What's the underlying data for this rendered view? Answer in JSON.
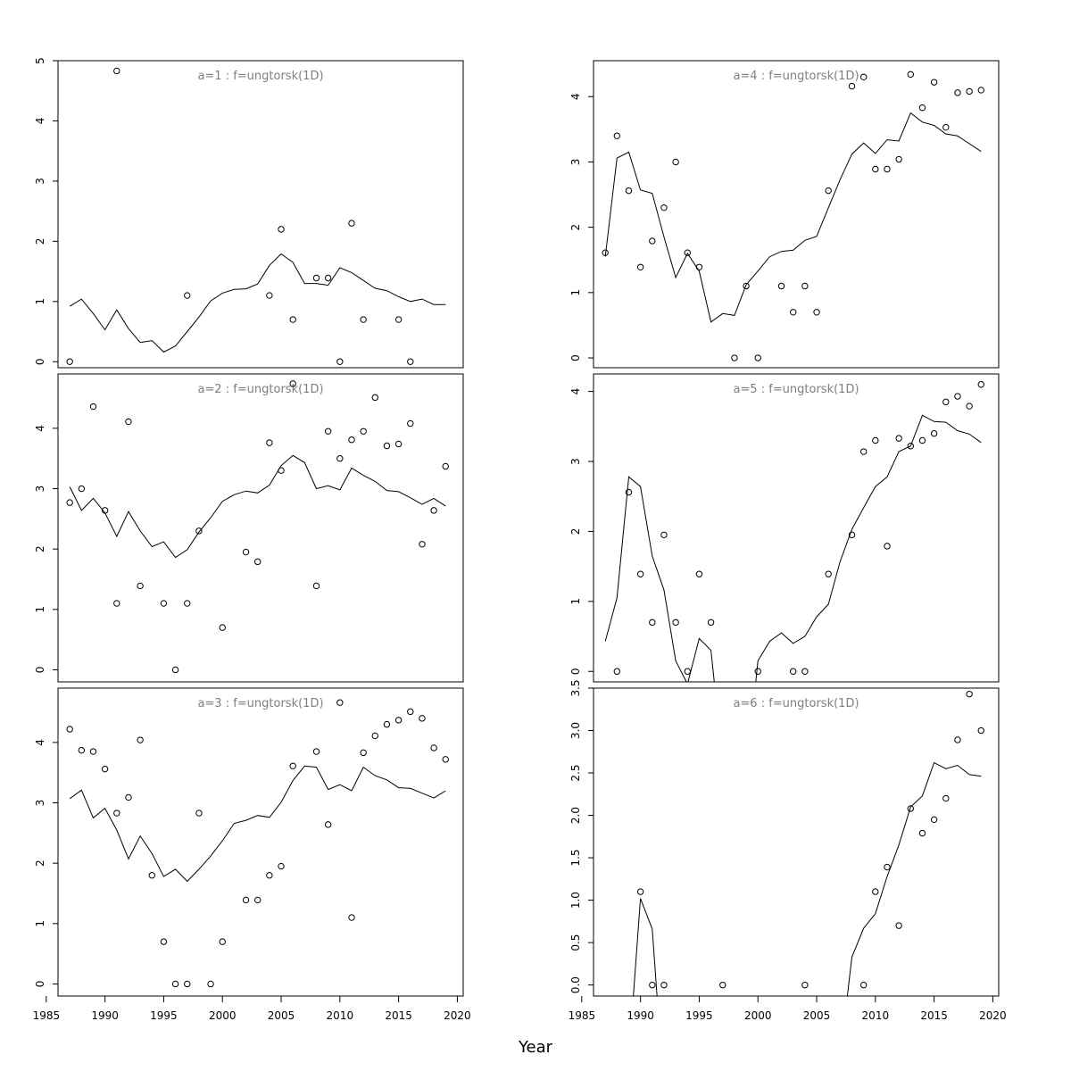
{
  "xlabel": "Year",
  "chart_data": [
    {
      "type": "scatter",
      "title": "a=1 : f=ungtorsk(1D)",
      "xlim": [
        1986,
        2020.5
      ],
      "ylim": [
        -0.1,
        5
      ],
      "yticks": [
        0,
        1,
        2,
        3,
        4,
        5
      ],
      "observed": [
        [
          1987,
          0
        ],
        [
          1991,
          4.83
        ],
        [
          1997,
          1.1
        ],
        [
          2004,
          1.1
        ],
        [
          2005,
          2.2
        ],
        [
          2006,
          0.7
        ],
        [
          2008,
          1.39
        ],
        [
          2009,
          1.39
        ],
        [
          2010,
          0
        ],
        [
          2011,
          2.3
        ],
        [
          2012,
          0.7
        ],
        [
          2015,
          0.7
        ],
        [
          2016,
          0
        ]
      ],
      "fitted": [
        [
          1987,
          0.92
        ],
        [
          1988,
          1.04
        ],
        [
          1989,
          0.8
        ],
        [
          1990,
          0.53
        ],
        [
          1991,
          0.86
        ],
        [
          1992,
          0.55
        ],
        [
          1993,
          0.32
        ],
        [
          1994,
          0.35
        ],
        [
          1995,
          0.16
        ],
        [
          1996,
          0.26
        ],
        [
          1997,
          0.5
        ],
        [
          1998,
          0.74
        ],
        [
          1999,
          1.01
        ],
        [
          2000,
          1.14
        ],
        [
          2001,
          1.2
        ],
        [
          2002,
          1.21
        ],
        [
          2003,
          1.29
        ],
        [
          2004,
          1.6
        ],
        [
          2005,
          1.79
        ],
        [
          2006,
          1.65
        ],
        [
          2007,
          1.3
        ],
        [
          2008,
          1.3
        ],
        [
          2009,
          1.27
        ],
        [
          2010,
          1.56
        ],
        [
          2011,
          1.48
        ],
        [
          2012,
          1.35
        ],
        [
          2013,
          1.22
        ],
        [
          2014,
          1.18
        ],
        [
          2015,
          1.08
        ],
        [
          2016,
          1.0
        ],
        [
          2017,
          1.04
        ],
        [
          2018,
          0.95
        ],
        [
          2019,
          0.95
        ]
      ]
    },
    {
      "type": "scatter",
      "title": "a=4 : f=ungtorsk(1D)",
      "xlim": [
        1986,
        2020.5
      ],
      "ylim": [
        -0.15,
        4.55
      ],
      "yticks": [
        0,
        1,
        2,
        3,
        4
      ],
      "observed": [
        [
          1987,
          1.61
        ],
        [
          1988,
          3.4
        ],
        [
          1989,
          2.56
        ],
        [
          1990,
          1.39
        ],
        [
          1991,
          1.79
        ],
        [
          1992,
          2.3
        ],
        [
          1993,
          3.0
        ],
        [
          1994,
          1.61
        ],
        [
          1995,
          1.39
        ],
        [
          1998,
          0
        ],
        [
          1999,
          1.1
        ],
        [
          2000,
          0
        ],
        [
          2002,
          1.1
        ],
        [
          2003,
          0.7
        ],
        [
          2004,
          1.1
        ],
        [
          2005,
          0.7
        ],
        [
          2006,
          2.56
        ],
        [
          2008,
          4.16
        ],
        [
          2009,
          4.3
        ],
        [
          2010,
          2.89
        ],
        [
          2011,
          2.89
        ],
        [
          2012,
          3.04
        ],
        [
          2013,
          4.34
        ],
        [
          2014,
          3.83
        ],
        [
          2015,
          4.22
        ],
        [
          2016,
          3.53
        ],
        [
          2017,
          4.06
        ],
        [
          2018,
          4.08
        ],
        [
          2019,
          4.1
        ]
      ],
      "fitted": [
        [
          1987,
          1.55
        ],
        [
          1988,
          3.06
        ],
        [
          1989,
          3.15
        ],
        [
          1990,
          2.57
        ],
        [
          1991,
          2.52
        ],
        [
          1992,
          1.85
        ],
        [
          1993,
          1.23
        ],
        [
          1994,
          1.6
        ],
        [
          1995,
          1.33
        ],
        [
          1996,
          0.55
        ],
        [
          1997,
          0.68
        ],
        [
          1998,
          0.65
        ],
        [
          1999,
          1.12
        ],
        [
          2000,
          1.33
        ],
        [
          2001,
          1.55
        ],
        [
          2002,
          1.63
        ],
        [
          2003,
          1.65
        ],
        [
          2004,
          1.8
        ],
        [
          2005,
          1.86
        ],
        [
          2006,
          2.3
        ],
        [
          2007,
          2.73
        ],
        [
          2008,
          3.12
        ],
        [
          2009,
          3.29
        ],
        [
          2010,
          3.13
        ],
        [
          2011,
          3.34
        ],
        [
          2012,
          3.32
        ],
        [
          2013,
          3.75
        ],
        [
          2014,
          3.61
        ],
        [
          2015,
          3.56
        ],
        [
          2016,
          3.43
        ],
        [
          2017,
          3.4
        ],
        [
          2018,
          3.28
        ],
        [
          2019,
          3.16
        ]
      ]
    },
    {
      "type": "scatter",
      "title": "a=2 : f=ungtorsk(1D)",
      "xlim": [
        1986,
        2020.5
      ],
      "ylim": [
        -0.2,
        4.9
      ],
      "yticks": [
        0,
        1,
        2,
        3,
        4
      ],
      "observed": [
        [
          1987,
          2.77
        ],
        [
          1988,
          3.0
        ],
        [
          1989,
          4.36
        ],
        [
          1990,
          2.64
        ],
        [
          1991,
          1.1
        ],
        [
          1992,
          4.11
        ],
        [
          1993,
          1.39
        ],
        [
          1995,
          1.1
        ],
        [
          1996,
          0
        ],
        [
          1997,
          1.1
        ],
        [
          1998,
          2.3
        ],
        [
          2000,
          0.7
        ],
        [
          2002,
          1.95
        ],
        [
          2003,
          1.79
        ],
        [
          2004,
          3.76
        ],
        [
          2005,
          3.3
        ],
        [
          2006,
          4.74
        ],
        [
          2008,
          1.39
        ],
        [
          2009,
          3.95
        ],
        [
          2010,
          3.5
        ],
        [
          2011,
          3.81
        ],
        [
          2012,
          3.95
        ],
        [
          2013,
          4.51
        ],
        [
          2014,
          3.71
        ],
        [
          2015,
          3.74
        ],
        [
          2016,
          4.08
        ],
        [
          2017,
          2.08
        ],
        [
          2018,
          2.64
        ],
        [
          2019,
          3.37
        ]
      ],
      "fitted": [
        [
          1987,
          3.03
        ],
        [
          1988,
          2.64
        ],
        [
          1989,
          2.84
        ],
        [
          1990,
          2.6
        ],
        [
          1991,
          2.21
        ],
        [
          1992,
          2.62
        ],
        [
          1993,
          2.3
        ],
        [
          1994,
          2.04
        ],
        [
          1995,
          2.12
        ],
        [
          1996,
          1.86
        ],
        [
          1997,
          1.99
        ],
        [
          1998,
          2.28
        ],
        [
          1999,
          2.52
        ],
        [
          2000,
          2.79
        ],
        [
          2001,
          2.9
        ],
        [
          2002,
          2.96
        ],
        [
          2003,
          2.93
        ],
        [
          2004,
          3.06
        ],
        [
          2005,
          3.38
        ],
        [
          2006,
          3.55
        ],
        [
          2007,
          3.43
        ],
        [
          2008,
          3.0
        ],
        [
          2009,
          3.05
        ],
        [
          2010,
          2.98
        ],
        [
          2011,
          3.34
        ],
        [
          2012,
          3.22
        ],
        [
          2013,
          3.12
        ],
        [
          2014,
          2.97
        ],
        [
          2015,
          2.95
        ],
        [
          2016,
          2.85
        ],
        [
          2017,
          2.74
        ],
        [
          2018,
          2.84
        ],
        [
          2019,
          2.71
        ]
      ]
    },
    {
      "type": "scatter",
      "title": "a=5 : f=ungtorsk(1D)",
      "xlim": [
        1986,
        2020.5
      ],
      "ylim": [
        -0.15,
        4.25
      ],
      "yticks": [
        0,
        1,
        2,
        3,
        4
      ],
      "observed": [
        [
          1988,
          0
        ],
        [
          1989,
          2.56
        ],
        [
          1990,
          1.39
        ],
        [
          1991,
          0.7
        ],
        [
          1992,
          1.95
        ],
        [
          1993,
          0.7
        ],
        [
          1994,
          0
        ],
        [
          1995,
          1.39
        ],
        [
          1996,
          0.7
        ],
        [
          2000,
          0
        ],
        [
          2003,
          0
        ],
        [
          2004,
          0
        ],
        [
          2006,
          1.39
        ],
        [
          2008,
          1.95
        ],
        [
          2009,
          3.14
        ],
        [
          2010,
          3.3
        ],
        [
          2011,
          1.79
        ],
        [
          2012,
          3.33
        ],
        [
          2013,
          3.22
        ],
        [
          2014,
          3.3
        ],
        [
          2015,
          3.4
        ],
        [
          2016,
          3.85
        ],
        [
          2017,
          3.93
        ],
        [
          2018,
          3.79
        ],
        [
          2019,
          4.1
        ]
      ],
      "fitted": [
        [
          1987,
          0.43
        ],
        [
          1988,
          1.05
        ],
        [
          1989,
          2.78
        ],
        [
          1990,
          2.64
        ],
        [
          1991,
          1.65
        ],
        [
          1992,
          1.16
        ],
        [
          1993,
          0.15
        ],
        [
          1994,
          -0.18
        ],
        [
          1995,
          0.47
        ],
        [
          1996,
          0.3
        ],
        [
          1996.5,
          -0.5
        ],
        [
          1999.6,
          -0.5
        ],
        [
          2000,
          0.15
        ],
        [
          2001,
          0.43
        ],
        [
          2002,
          0.55
        ],
        [
          2003,
          0.4
        ],
        [
          2004,
          0.5
        ],
        [
          2005,
          0.78
        ],
        [
          2006,
          0.96
        ],
        [
          2007,
          1.57
        ],
        [
          2008,
          2.03
        ],
        [
          2009,
          2.34
        ],
        [
          2010,
          2.64
        ],
        [
          2011,
          2.78
        ],
        [
          2012,
          3.14
        ],
        [
          2013,
          3.22
        ],
        [
          2014,
          3.66
        ],
        [
          2015,
          3.57
        ],
        [
          2016,
          3.56
        ],
        [
          2017,
          3.44
        ],
        [
          2018,
          3.39
        ],
        [
          2019,
          3.27
        ]
      ]
    },
    {
      "type": "scatter",
      "title": "a=3 : f=ungtorsk(1D)",
      "xlim": [
        1986,
        2020.5
      ],
      "ylim": [
        -0.2,
        4.9
      ],
      "yticks": [
        0,
        1,
        2,
        3,
        4
      ],
      "observed": [
        [
          1987,
          4.22
        ],
        [
          1988,
          3.87
        ],
        [
          1989,
          3.85
        ],
        [
          1990,
          3.56
        ],
        [
          1991,
          2.83
        ],
        [
          1992,
          3.09
        ],
        [
          1993,
          4.04
        ],
        [
          1994,
          1.8
        ],
        [
          1995,
          0.7
        ],
        [
          1996,
          0
        ],
        [
          1997,
          0
        ],
        [
          1998,
          2.83
        ],
        [
          1999,
          0
        ],
        [
          2000,
          0.7
        ],
        [
          2002,
          1.39
        ],
        [
          2003,
          1.39
        ],
        [
          2004,
          1.8
        ],
        [
          2005,
          1.95
        ],
        [
          2006,
          3.61
        ],
        [
          2009,
          2.64
        ],
        [
          2008,
          3.85
        ],
        [
          2010,
          4.66
        ],
        [
          2011,
          1.1
        ],
        [
          2012,
          3.83
        ],
        [
          2013,
          4.11
        ],
        [
          2014,
          4.3
        ],
        [
          2015,
          4.37
        ],
        [
          2016,
          4.51
        ],
        [
          2017,
          4.4
        ],
        [
          2018,
          3.91
        ],
        [
          2019,
          3.72
        ]
      ],
      "fitted": [
        [
          1987,
          3.07
        ],
        [
          1988,
          3.21
        ],
        [
          1989,
          2.75
        ],
        [
          1990,
          2.91
        ],
        [
          1991,
          2.55
        ],
        [
          1992,
          2.07
        ],
        [
          1993,
          2.45
        ],
        [
          1994,
          2.16
        ],
        [
          1995,
          1.78
        ],
        [
          1996,
          1.9
        ],
        [
          1997,
          1.7
        ],
        [
          1998,
          1.9
        ],
        [
          1999,
          2.12
        ],
        [
          2000,
          2.37
        ],
        [
          2001,
          2.66
        ],
        [
          2002,
          2.71
        ],
        [
          2003,
          2.79
        ],
        [
          2004,
          2.76
        ],
        [
          2005,
          3.01
        ],
        [
          2006,
          3.37
        ],
        [
          2007,
          3.61
        ],
        [
          2008,
          3.59
        ],
        [
          2009,
          3.22
        ],
        [
          2010,
          3.3
        ],
        [
          2011,
          3.2
        ],
        [
          2012,
          3.59
        ],
        [
          2013,
          3.45
        ],
        [
          2014,
          3.38
        ],
        [
          2015,
          3.25
        ],
        [
          2016,
          3.24
        ],
        [
          2017,
          3.16
        ],
        [
          2018,
          3.08
        ],
        [
          2019,
          3.2
        ]
      ]
    },
    {
      "type": "scatter",
      "title": "a=6 : f=ungtorsk(1D)",
      "xlim": [
        1986,
        2020.5
      ],
      "ylim": [
        -0.13,
        3.5
      ],
      "yticks": [
        0,
        0.5,
        1,
        1.5,
        2,
        2.5,
        3,
        3.5
      ],
      "ytick_labels": [
        "0.0",
        "0.5",
        "1.0",
        "1.5",
        "2.0",
        "2.5",
        "3.0",
        "3.5"
      ],
      "observed": [
        [
          1990,
          1.1
        ],
        [
          1991,
          0
        ],
        [
          1992,
          0
        ],
        [
          1997,
          0
        ],
        [
          2004,
          0
        ],
        [
          2009,
          0
        ],
        [
          2010,
          1.1
        ],
        [
          2011,
          1.39
        ],
        [
          2012,
          0.7
        ],
        [
          2013,
          2.08
        ],
        [
          2014,
          1.79
        ],
        [
          2015,
          1.95
        ],
        [
          2016,
          2.2
        ],
        [
          2017,
          2.89
        ],
        [
          2018,
          3.43
        ],
        [
          2019,
          3.0
        ]
      ],
      "fitted": [
        [
          1989.2,
          -0.5
        ],
        [
          1990,
          1.02
        ],
        [
          1991,
          0.66
        ],
        [
          1991.6,
          -0.5
        ],
        [
          2007.3,
          -0.5
        ],
        [
          2008,
          0.33
        ],
        [
          2009,
          0.67
        ],
        [
          2010,
          0.84
        ],
        [
          2011,
          1.28
        ],
        [
          2012,
          1.65
        ],
        [
          2013,
          2.1
        ],
        [
          2014,
          2.23
        ],
        [
          2015,
          2.62
        ],
        [
          2016,
          2.55
        ],
        [
          2017,
          2.59
        ],
        [
          2018,
          2.48
        ],
        [
          2019,
          2.46
        ]
      ]
    }
  ],
  "xticks": [
    1985,
    1990,
    1995,
    2000,
    2005,
    2010,
    2015,
    2020
  ]
}
